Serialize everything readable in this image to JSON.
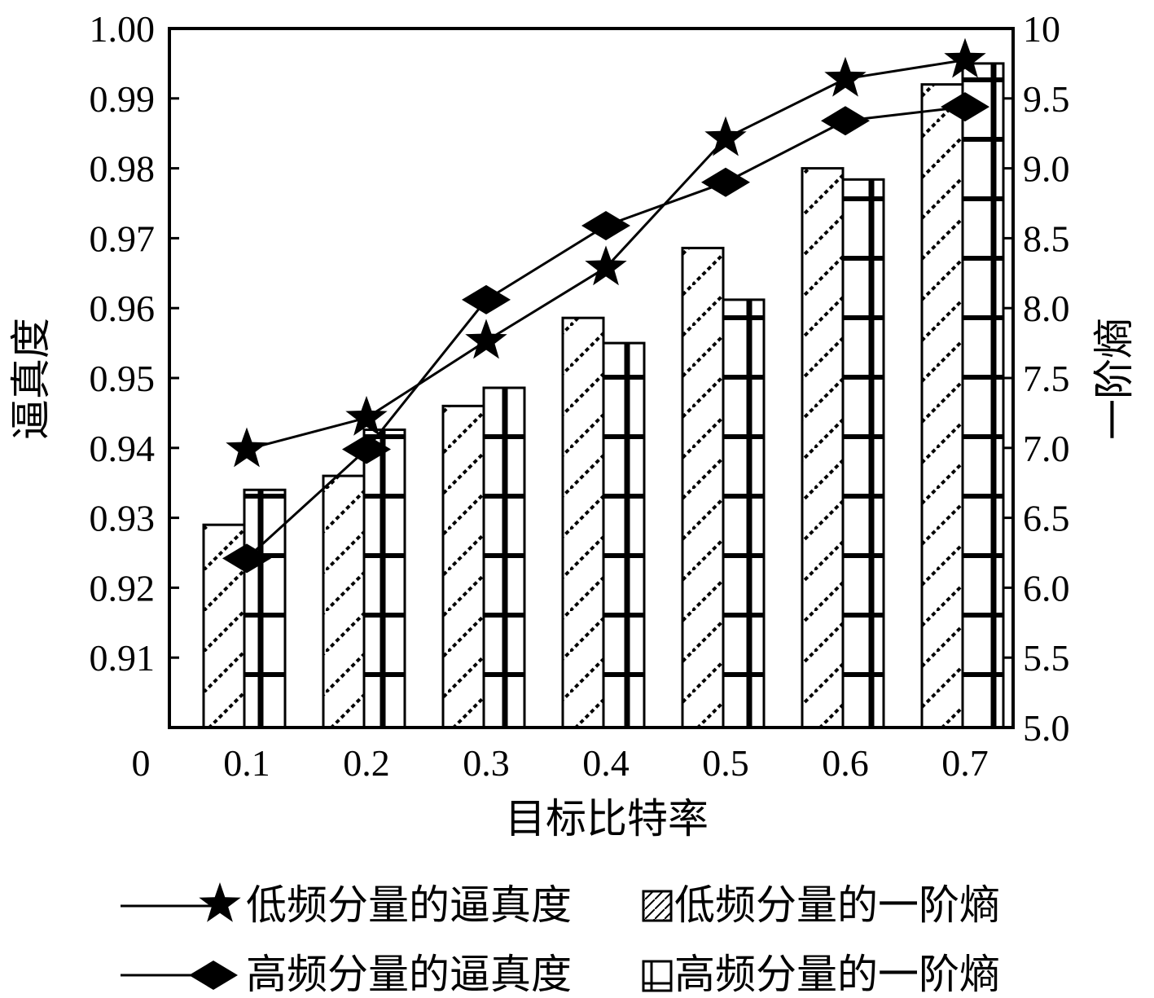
{
  "chart_data": {
    "type": "bar",
    "title": "",
    "xlabel": "目标比特率",
    "ylabel_left": "逼真度",
    "ylabel_right": "一阶熵",
    "x_origin_label": "0",
    "categories": [
      "0.1",
      "0.2",
      "0.3",
      "0.4",
      "0.5",
      "0.6",
      "0.7"
    ],
    "ylim_left": [
      0.9,
      1.0
    ],
    "yticks_left": [
      "0.91",
      "0.92",
      "0.93",
      "0.94",
      "0.95",
      "0.96",
      "0.97",
      "0.98",
      "0.99",
      "1.00"
    ],
    "ylim_right": [
      5.0,
      10.0
    ],
    "yticks_right": [
      "5.0",
      "5.5",
      "6.0",
      "6.5",
      "7.0",
      "7.5",
      "8.0",
      "8.5",
      "9.0",
      "9.5",
      "10"
    ],
    "bar_series": [
      {
        "name": "低频分量的一阶熵",
        "axis": "right",
        "pattern": "diagonal",
        "values": [
          6.45,
          6.8,
          7.3,
          7.93,
          8.43,
          9.0,
          9.6
        ]
      },
      {
        "name": "高频分量的一阶熵",
        "axis": "right",
        "pattern": "grid",
        "values": [
          6.7,
          7.13,
          7.43,
          7.75,
          8.06,
          8.92,
          9.75
        ]
      }
    ],
    "line_series": [
      {
        "name": "低频分量的逼真度",
        "axis": "left",
        "marker": "star",
        "values": [
          0.9398,
          0.9443,
          0.9553,
          0.9658,
          0.9843,
          0.9928,
          0.9955
        ]
      },
      {
        "name": "高频分量的逼真度",
        "axis": "left",
        "marker": "diamond",
        "values": [
          0.9242,
          0.9398,
          0.9612,
          0.9718,
          0.978,
          0.9868,
          0.9888
        ]
      }
    ],
    "legend": [
      {
        "label": "低频分量的逼真度",
        "kind": "line-star"
      },
      {
        "label": "低频分量的一阶熵",
        "kind": "bar-diagonal"
      },
      {
        "label": "高频分量的逼真度",
        "kind": "line-diamond"
      },
      {
        "label": "高频分量的一阶熵",
        "kind": "bar-grid"
      }
    ],
    "grid": false,
    "legend_position": "bottom"
  }
}
